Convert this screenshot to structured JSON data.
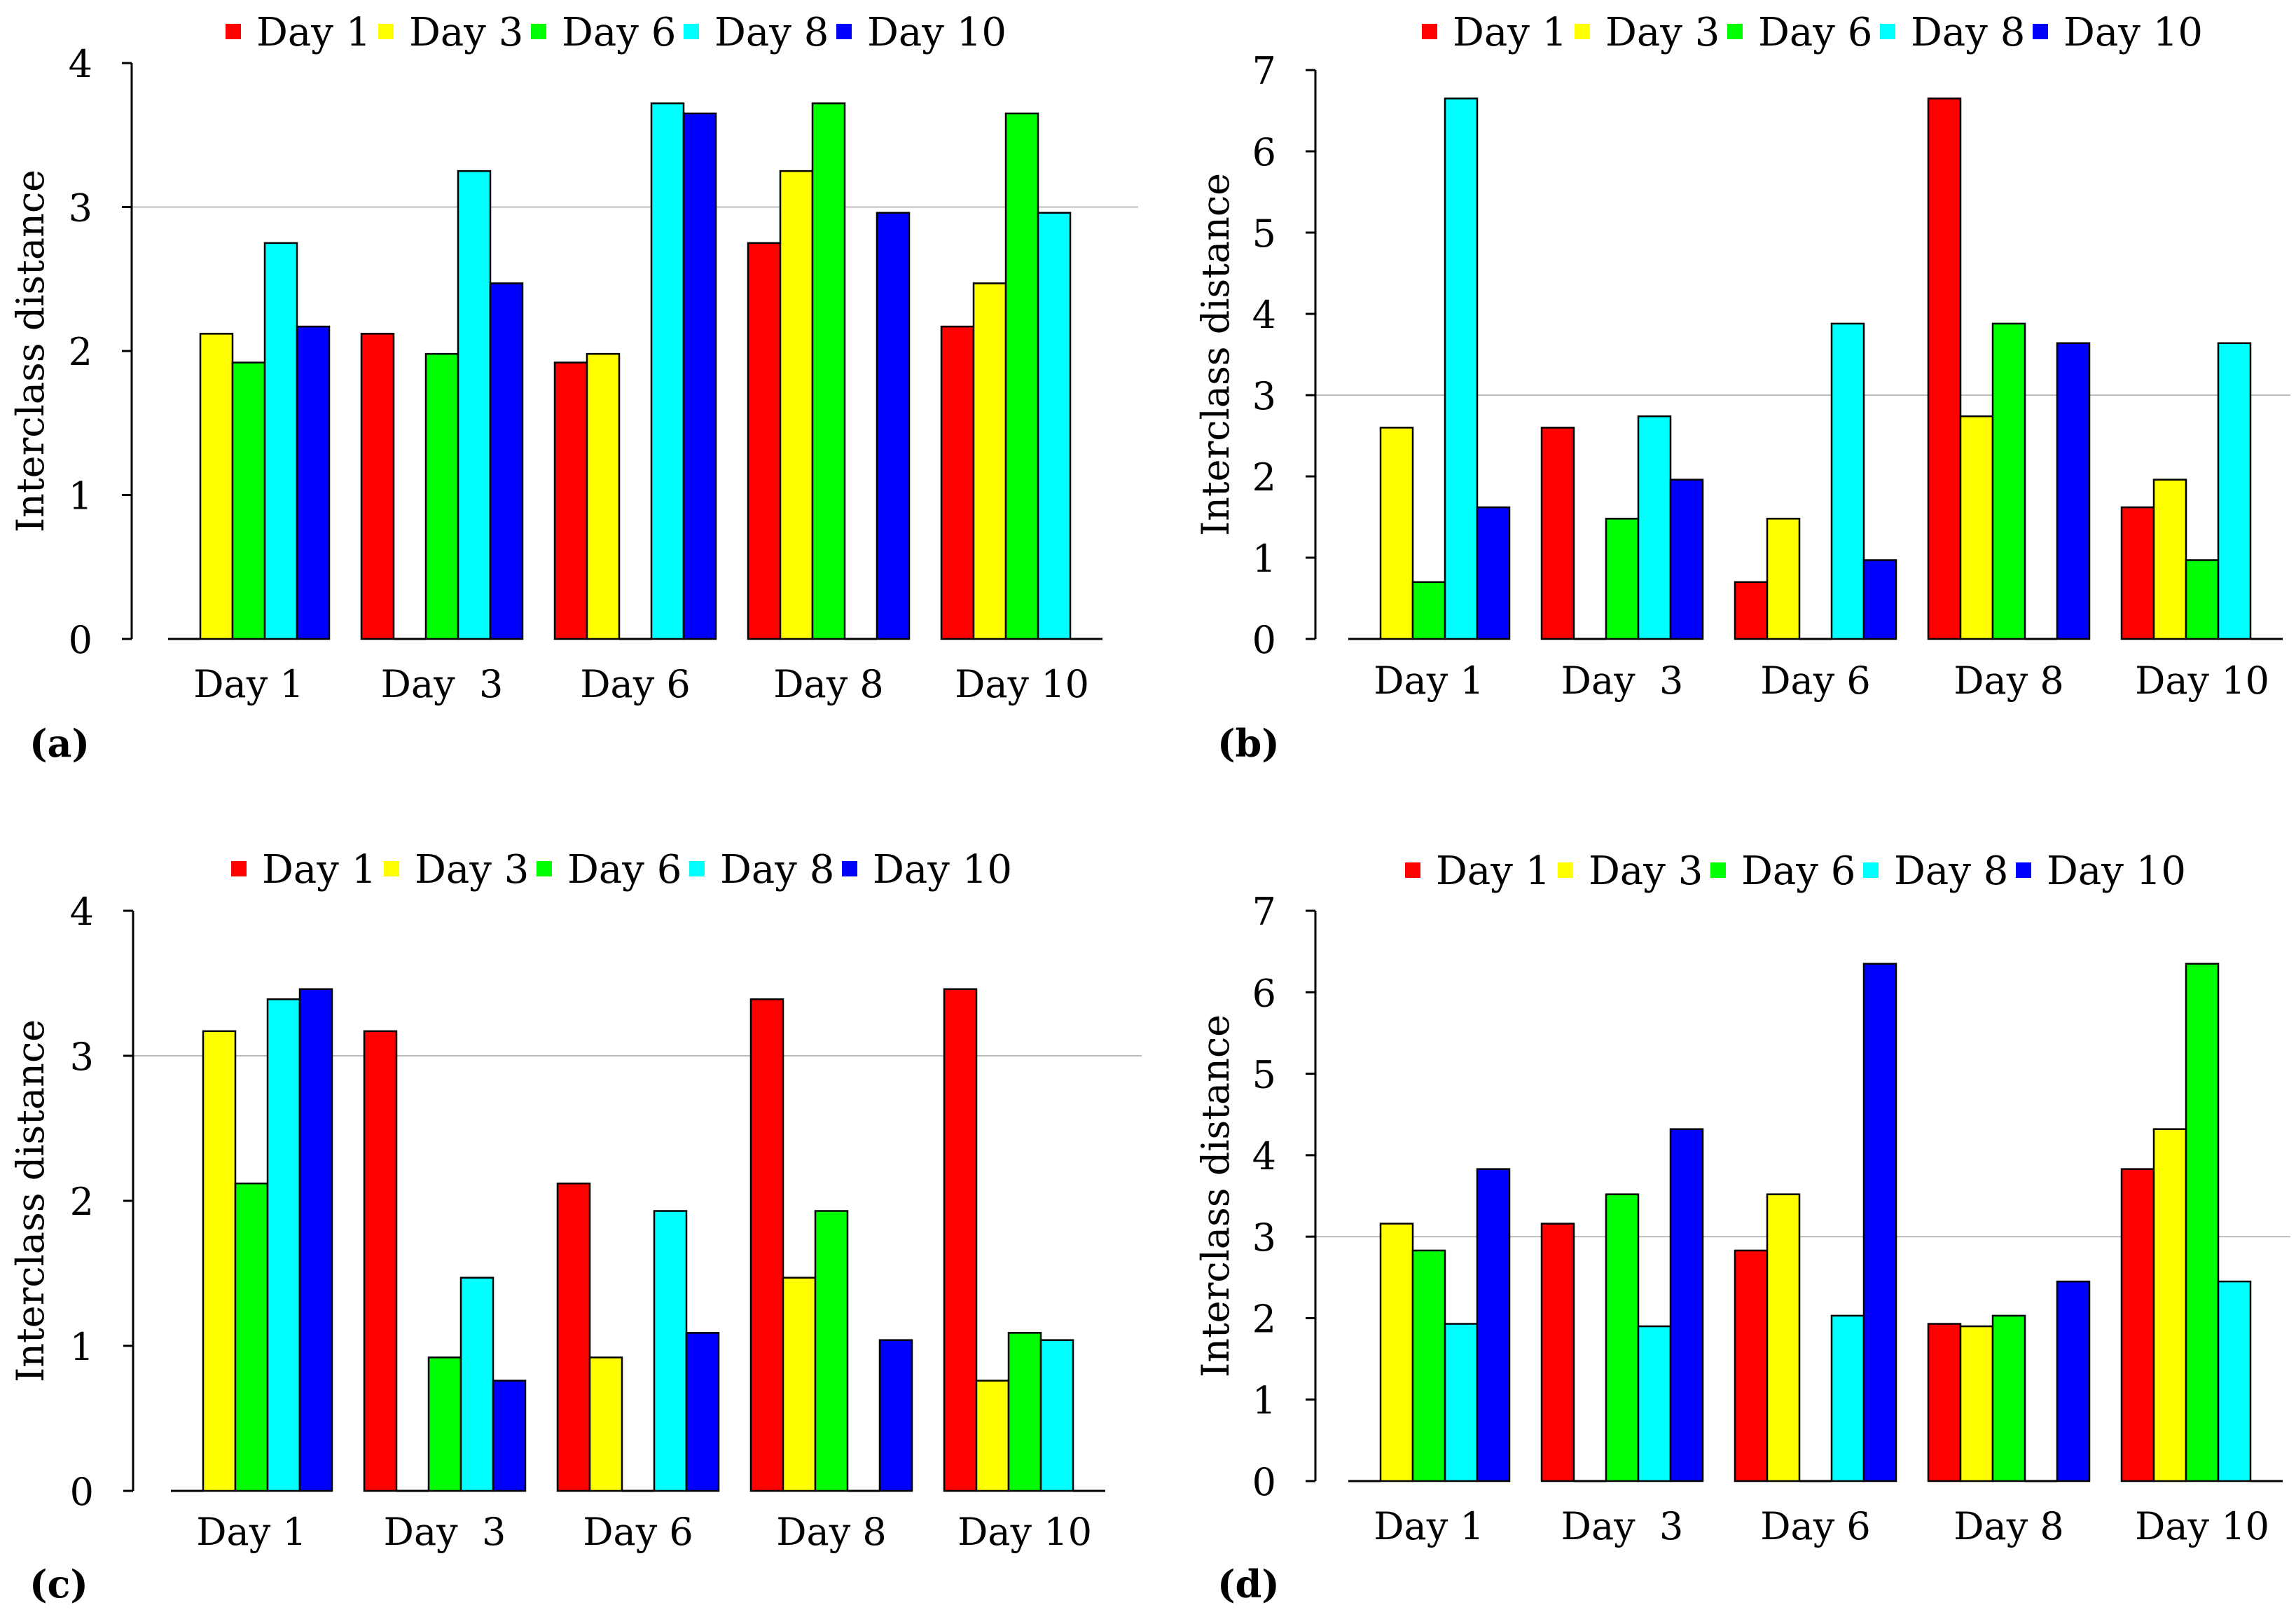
{
  "chart_data": [
    {
      "type": "bar",
      "panel_label": "(a)",
      "ylabel": "Interclass distance",
      "ylim": [
        0,
        4
      ],
      "yticks": [
        "0",
        "1",
        "2",
        "3",
        "4"
      ],
      "gridline": 3,
      "categories": [
        "Day 1",
        "Day  3",
        "Day 6",
        "Day 8",
        "Day 10"
      ],
      "legend_position": "top",
      "series": [
        {
          "name": "Day 1",
          "color": "#ff0000",
          "values": [
            0,
            2.12,
            1.92,
            2.75,
            2.17
          ]
        },
        {
          "name": "Day 3",
          "color": "#ffff00",
          "values": [
            2.12,
            0,
            1.98,
            3.25,
            2.47
          ]
        },
        {
          "name": "Day 6",
          "color": "#00ff00",
          "values": [
            1.92,
            1.98,
            0,
            3.72,
            3.65
          ]
        },
        {
          "name": "Day 8",
          "color": "#00ffff",
          "values": [
            2.75,
            3.25,
            3.72,
            0,
            2.96
          ]
        },
        {
          "name": "Day 10",
          "color": "#0000ff",
          "values": [
            2.17,
            2.47,
            3.65,
            2.96,
            0
          ]
        }
      ]
    },
    {
      "type": "bar",
      "panel_label": "(b)",
      "ylabel": "Interclass distance",
      "ylim": [
        0,
        7
      ],
      "yticks": [
        "0",
        "1",
        "2",
        "3",
        "4",
        "5",
        "6",
        "7"
      ],
      "gridline": 3,
      "categories": [
        "Day 1",
        "Day  3",
        "Day 6",
        "Day 8",
        "Day 10"
      ],
      "legend_position": "top",
      "series": [
        {
          "name": "Day 1",
          "color": "#ff0000",
          "values": [
            0,
            2.6,
            0.7,
            6.65,
            1.62
          ]
        },
        {
          "name": "Day 3",
          "color": "#ffff00",
          "values": [
            2.6,
            0,
            1.48,
            2.74,
            1.96
          ]
        },
        {
          "name": "Day 6",
          "color": "#00ff00",
          "values": [
            0.7,
            1.48,
            0,
            3.88,
            0.97
          ]
        },
        {
          "name": "Day 8",
          "color": "#00ffff",
          "values": [
            6.65,
            2.74,
            3.88,
            0,
            3.64
          ]
        },
        {
          "name": "Day 10",
          "color": "#0000ff",
          "values": [
            1.62,
            1.96,
            0.97,
            3.64,
            0
          ]
        }
      ]
    },
    {
      "type": "bar",
      "panel_label": "(c)",
      "ylabel": "Interclass distance",
      "ylim": [
        0,
        4
      ],
      "yticks": [
        "0",
        "1",
        "2",
        "3",
        "4"
      ],
      "gridline": 3,
      "categories": [
        "Day 1",
        "Day  3",
        "Day 6",
        "Day 8",
        "Day 10"
      ],
      "legend_position": "top",
      "series": [
        {
          "name": "Day 1",
          "color": "#ff0000",
          "values": [
            0,
            3.17,
            2.12,
            3.39,
            3.46
          ]
        },
        {
          "name": "Day 3",
          "color": "#ffff00",
          "values": [
            3.17,
            0,
            0.92,
            1.47,
            0.76
          ]
        },
        {
          "name": "Day 6",
          "color": "#00ff00",
          "values": [
            2.12,
            0.92,
            0,
            1.93,
            1.09
          ]
        },
        {
          "name": "Day 8",
          "color": "#00ffff",
          "values": [
            3.39,
            1.47,
            1.93,
            0,
            1.04
          ]
        },
        {
          "name": "Day 10",
          "color": "#0000ff",
          "values": [
            3.46,
            0.76,
            1.09,
            1.04,
            0
          ]
        }
      ]
    },
    {
      "type": "bar",
      "panel_label": "(d)",
      "ylabel": "Interclass distance",
      "ylim": [
        0,
        7
      ],
      "yticks": [
        "0",
        "1",
        "2",
        "3",
        "4",
        "5",
        "6",
        "7"
      ],
      "gridline": 3,
      "categories": [
        "Day 1",
        "Day  3",
        "Day 6",
        "Day 8",
        "Day 10"
      ],
      "legend_position": "top",
      "series": [
        {
          "name": "Day 1",
          "color": "#ff0000",
          "values": [
            0,
            3.16,
            2.83,
            1.93,
            3.83
          ]
        },
        {
          "name": "Day 3",
          "color": "#ffff00",
          "values": [
            3.16,
            0,
            3.52,
            1.9,
            4.32
          ]
        },
        {
          "name": "Day 6",
          "color": "#00ff00",
          "values": [
            2.83,
            3.52,
            0,
            2.03,
            6.35
          ]
        },
        {
          "name": "Day 8",
          "color": "#00ffff",
          "values": [
            1.93,
            1.9,
            2.03,
            0,
            2.45
          ]
        },
        {
          "name": "Day 10",
          "color": "#0000ff",
          "values": [
            3.83,
            4.32,
            6.35,
            2.45,
            0
          ]
        }
      ]
    }
  ]
}
